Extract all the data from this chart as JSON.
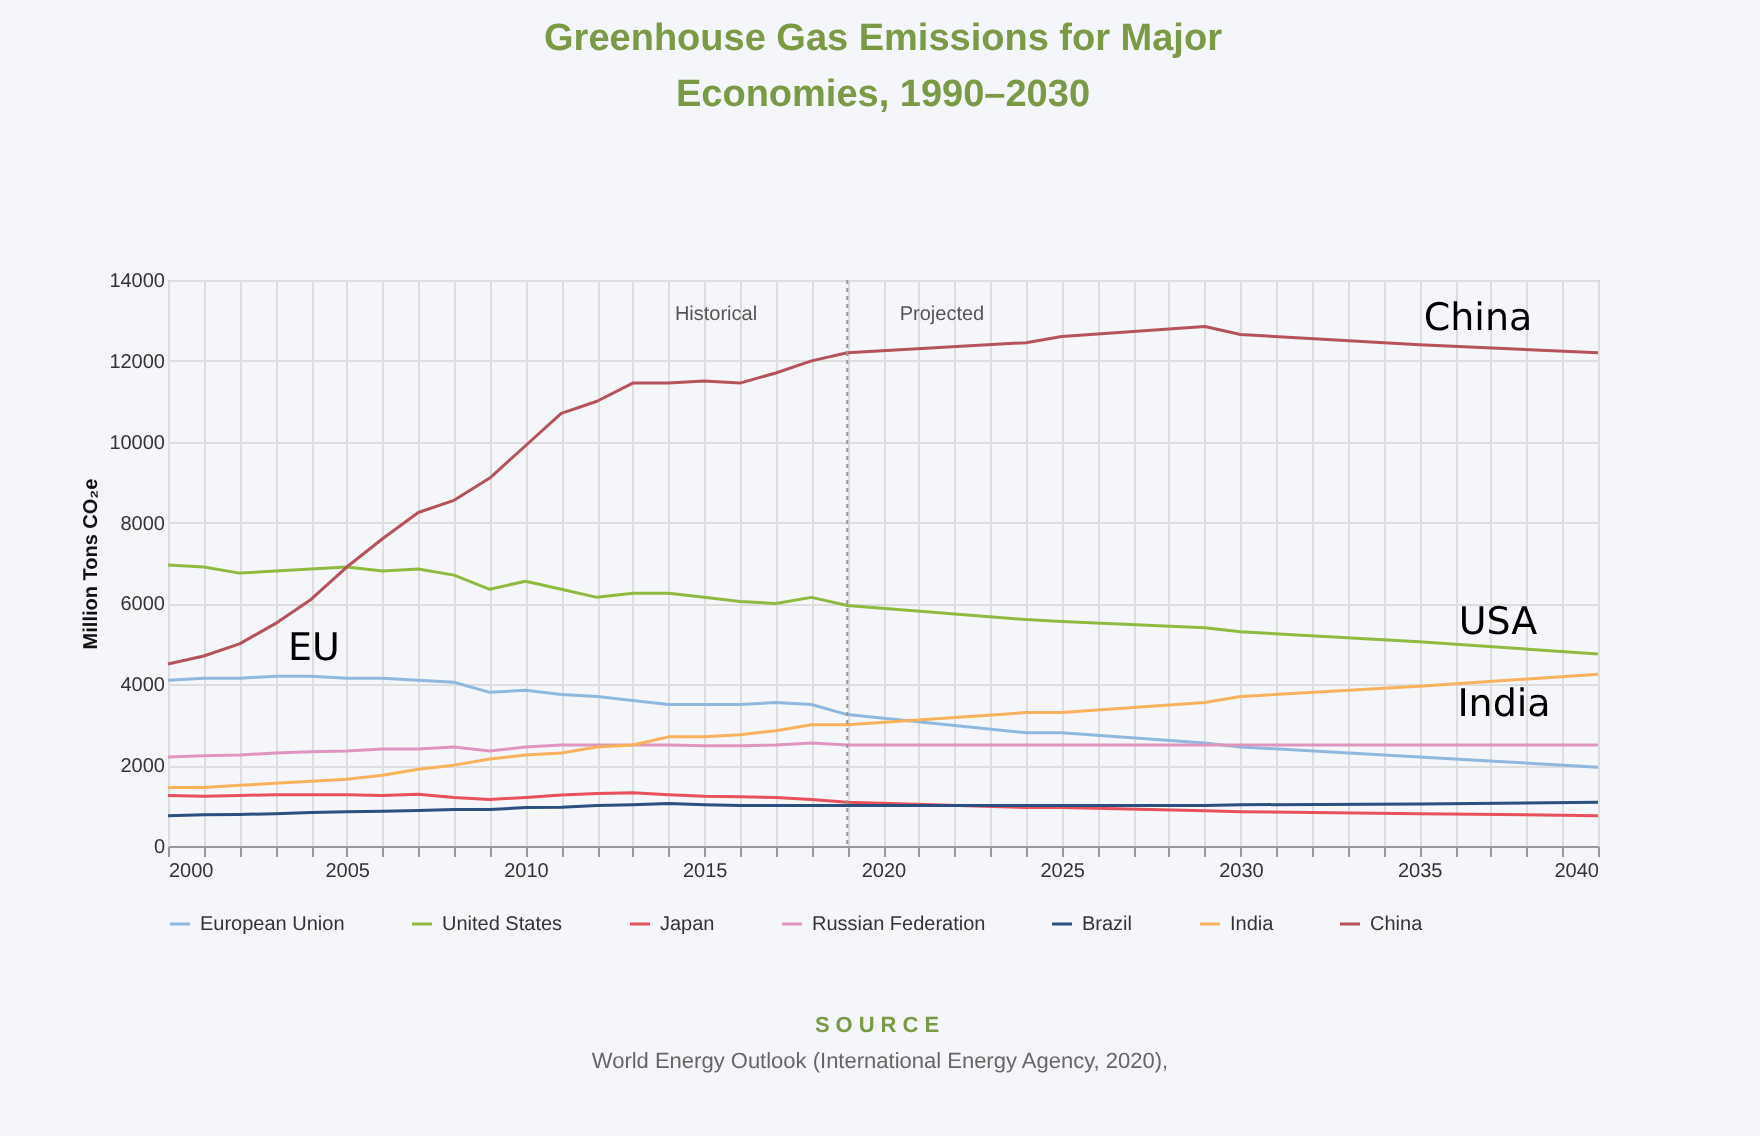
{
  "chart_data": {
    "type": "line",
    "title": "Greenhouse Gas Emissions for Major\nEconomies, 1990–2030",
    "ylabel": "Million Tons CO₂e",
    "x": [
      2000,
      2001,
      2002,
      2003,
      2004,
      2005,
      2006,
      2007,
      2008,
      2009,
      2010,
      2011,
      2012,
      2013,
      2014,
      2015,
      2016,
      2017,
      2018,
      2019,
      2024,
      2025,
      2029,
      2030,
      2035,
      2040
    ],
    "series": [
      {
        "name": "European Union",
        "color": "#8fb8de",
        "values": [
          4100,
          4150,
          4150,
          4200,
          4200,
          4150,
          4150,
          4100,
          4050,
          3800,
          3850,
          3750,
          3700,
          3600,
          3500,
          3500,
          3500,
          3550,
          3500,
          3250,
          2800,
          2800,
          2550,
          2450,
          2200,
          1950
        ]
      },
      {
        "name": "United States",
        "color": "#8dba3f",
        "values": [
          6950,
          6900,
          6750,
          6800,
          6850,
          6900,
          6800,
          6850,
          6700,
          6350,
          6550,
          6350,
          6150,
          6250,
          6250,
          6150,
          6050,
          6000,
          6150,
          5950,
          5600,
          5550,
          5400,
          5300,
          5050,
          4750
        ]
      },
      {
        "name": "Japan",
        "color": "#e8505b",
        "values": [
          1250,
          1230,
          1250,
          1270,
          1270,
          1270,
          1250,
          1280,
          1200,
          1150,
          1200,
          1260,
          1300,
          1320,
          1270,
          1230,
          1220,
          1200,
          1150,
          1080,
          950,
          950,
          870,
          850,
          800,
          750
        ]
      },
      {
        "name": "Russian Federation",
        "color": "#e095c0",
        "values": [
          2200,
          2230,
          2250,
          2300,
          2330,
          2350,
          2400,
          2400,
          2450,
          2350,
          2450,
          2500,
          2500,
          2500,
          2500,
          2480,
          2480,
          2500,
          2550,
          2500,
          2500,
          2500,
          2500,
          2500,
          2500,
          2500
        ]
      },
      {
        "name": "Brazil",
        "color": "#2b4f7e",
        "values": [
          750,
          770,
          780,
          800,
          830,
          850,
          860,
          880,
          900,
          900,
          950,
          960,
          1000,
          1020,
          1050,
          1020,
          1000,
          1000,
          1000,
          1000,
          1000,
          1000,
          1000,
          1020,
          1040,
          1080
        ]
      },
      {
        "name": "India",
        "color": "#f9b25c",
        "values": [
          1450,
          1450,
          1500,
          1550,
          1600,
          1650,
          1750,
          1900,
          2000,
          2150,
          2250,
          2300,
          2450,
          2500,
          2700,
          2700,
          2750,
          2850,
          3000,
          3000,
          3300,
          3300,
          3550,
          3700,
          3950,
          4250
        ]
      },
      {
        "name": "China",
        "color": "#b5525a",
        "values": [
          4500,
          4700,
          5000,
          5500,
          6100,
          6900,
          7600,
          8250,
          8550,
          9100,
          9900,
          10700,
          11000,
          11450,
          11450,
          11500,
          11450,
          11700,
          12000,
          12200,
          12450,
          12600,
          12850,
          12650,
          12400,
          12200
        ]
      }
    ],
    "xlim": [
      2000,
      2040
    ],
    "xticks": [
      2000,
      {
        "value": 2001,
        "label": null
      },
      {
        "value": 2002,
        "label": null
      },
      {
        "value": 2003,
        "label": null
      },
      {
        "value": 2004,
        "label": null
      },
      2005,
      {
        "value": 2006,
        "label": null
      },
      {
        "value": 2007,
        "label": null
      },
      {
        "value": 2008,
        "label": null
      },
      {
        "value": 2009,
        "label": null
      },
      2010,
      {
        "value": 2011,
        "label": null
      },
      {
        "value": 2012,
        "label": null
      },
      {
        "value": 2013,
        "label": null
      },
      {
        "value": 2014,
        "label": null
      },
      2015,
      {
        "value": 2016,
        "label": null
      },
      {
        "value": 2017,
        "label": null
      },
      {
        "value": 2018,
        "label": null
      },
      {
        "value": 2019,
        "label": null
      },
      2020,
      {
        "value": 2021,
        "label": null
      },
      {
        "value": 2022,
        "label": null
      },
      {
        "value": 2023,
        "label": null
      },
      {
        "value": 2024,
        "label": null
      },
      2025,
      {
        "value": 2026,
        "label": null
      },
      {
        "value": 2027,
        "label": null
      },
      {
        "value": 2028,
        "label": null
      },
      {
        "value": 2029,
        "label": null
      },
      2030,
      {
        "value": 2031,
        "label": null
      },
      {
        "value": 2032,
        "label": null
      },
      {
        "value": 2033,
        "label": null
      },
      {
        "value": 2034,
        "label": null
      },
      2035,
      {
        "value": 2036,
        "label": null
      },
      {
        "value": 2037,
        "label": null
      },
      {
        "value": 2038,
        "label": null
      },
      {
        "value": 2039,
        "label": null
      },
      2040
    ],
    "ylim": [
      0,
      14000
    ],
    "yticks": [
      0,
      2000,
      4000,
      6000,
      8000,
      10000,
      12000,
      14000
    ],
    "grid": true,
    "legend": "bottom",
    "ref_lines": [
      {
        "axis": "x",
        "value": 2019,
        "line_style": "dotted",
        "color": "#999999"
      }
    ],
    "annotations": [
      "Historical",
      "Projected",
      "EU",
      "China",
      "USA",
      "India",
      "SOURCE",
      "World Energy Outlook (International Energy Agency, 2020),"
    ]
  }
}
